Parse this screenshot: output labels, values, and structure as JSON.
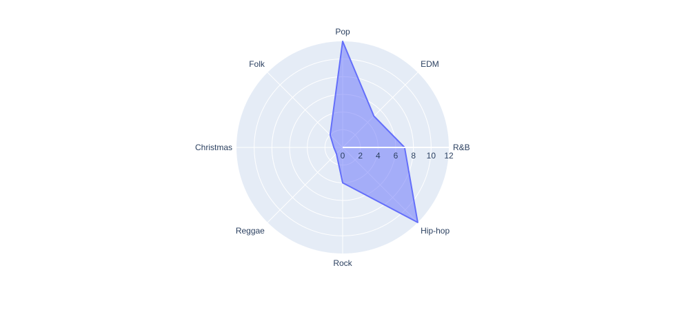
{
  "chart_data": {
    "type": "radar",
    "title": "",
    "categories": [
      "R&B",
      "EDM",
      "Pop",
      "Folk",
      "Christmas",
      "Reggae",
      "Rock",
      "Hip-hop"
    ],
    "series": [
      {
        "values": [
          7,
          5,
          12,
          2,
          1,
          1,
          4,
          12
        ]
      }
    ],
    "radial_range": [
      0,
      12
    ],
    "radial_ticks": [
      0,
      2,
      4,
      6,
      8,
      10,
      12
    ],
    "radial_tick_labels": [
      "0",
      "2",
      "4",
      "6",
      "8",
      "10",
      "12"
    ],
    "grid": true,
    "legend": false,
    "colors": {
      "background": "#e5ecf6",
      "grid": "#ffffff",
      "line": "#636efa",
      "fill": "#636efa"
    }
  }
}
